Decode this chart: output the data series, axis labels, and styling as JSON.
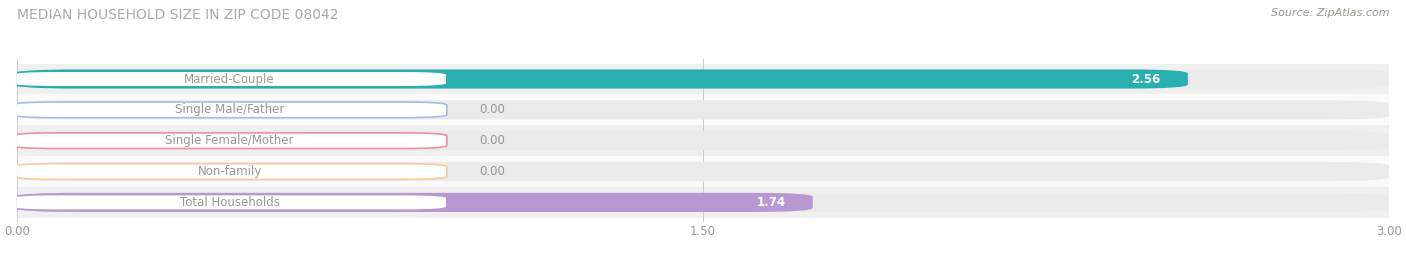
{
  "title": "MEDIAN HOUSEHOLD SIZE IN ZIP CODE 08042",
  "source": "Source: ZipAtlas.com",
  "categories": [
    "Married-Couple",
    "Single Male/Father",
    "Single Female/Mother",
    "Non-family",
    "Total Households"
  ],
  "values": [
    2.56,
    0.0,
    0.0,
    0.0,
    1.74
  ],
  "bar_colors": [
    "#2aafb0",
    "#a8bce8",
    "#f090a0",
    "#f8ce98",
    "#b898d0"
  ],
  "xlim": [
    0.0,
    3.0
  ],
  "xticks": [
    0.0,
    1.5,
    3.0
  ],
  "xtick_labels": [
    "0.00",
    "1.50",
    "3.00"
  ],
  "bg_color": "#ffffff",
  "bar_bg_color": "#ebebeb",
  "row_bg_even": "#f0f0f0",
  "row_bg_odd": "#fafafa",
  "title_fontsize": 10,
  "label_fontsize": 8.5,
  "value_fontsize": 8.5,
  "source_fontsize": 8,
  "text_color": "#999990",
  "title_color": "#aaaaaa",
  "value_color_inside": "#ffffff",
  "value_color_outside": "#999990"
}
